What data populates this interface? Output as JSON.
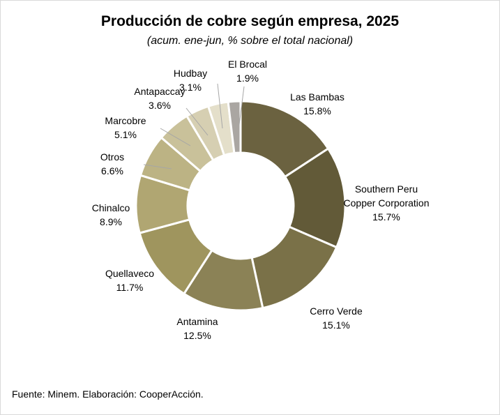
{
  "header": {
    "title": "Producción de cobre según empresa, 2025",
    "subtitle": "(acum. ene-jun, % sobre el total nacional)"
  },
  "footer": {
    "source": "Fuente: Minem. Elaboración: CooperAcción."
  },
  "chart_data": {
    "type": "pie",
    "donut": true,
    "title": "Producción de cobre según empresa, 2025",
    "subtitle": "(acum. ene-jun, % sobre el total nacional)",
    "legend": "none",
    "slices": [
      {
        "label": [
          "Las Bambas"
        ],
        "value_label": "15.8%",
        "value": 15.8,
        "color": "#6b6240"
      },
      {
        "label": [
          "Southern Peru",
          "Copper Corporation"
        ],
        "value_label": "15.7%",
        "value": 15.7,
        "color": "#625a38"
      },
      {
        "label": [
          "Cerro Verde"
        ],
        "value_label": "15.1%",
        "value": 15.1,
        "color": "#7a7148"
      },
      {
        "label": [
          "Antamina"
        ],
        "value_label": "12.5%",
        "value": 12.5,
        "color": "#8b8256"
      },
      {
        "label": [
          "Quellaveco"
        ],
        "value_label": "11.7%",
        "value": 11.7,
        "color": "#9f955e"
      },
      {
        "label": [
          "Chinalco"
        ],
        "value_label": "8.9%",
        "value": 8.9,
        "color": "#b0a672"
      },
      {
        "label": [
          "Otros"
        ],
        "value_label": "6.6%",
        "value": 6.6,
        "color": "#bcb384"
      },
      {
        "label": [
          "Marcobre"
        ],
        "value_label": "5.1%",
        "value": 5.1,
        "color": "#c9c19a"
      },
      {
        "label": [
          "Antapaccay"
        ],
        "value_label": "3.6%",
        "value": 3.6,
        "color": "#d6cfb2"
      },
      {
        "label": [
          "Hudbay"
        ],
        "value_label": "3.1%",
        "value": 3.1,
        "color": "#e4dfca"
      },
      {
        "label": [
          "El Brocal"
        ],
        "value_label": "1.9%",
        "value": 1.9,
        "color": "#aaa6a2"
      }
    ]
  }
}
